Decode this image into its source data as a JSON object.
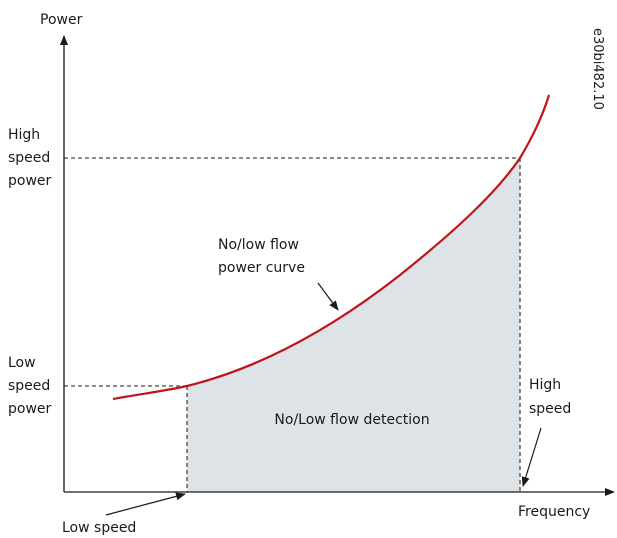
{
  "diagram": {
    "y_axis_label": "Power",
    "x_axis_label": "Frequency",
    "high_speed_power": [
      "High",
      "speed",
      "power"
    ],
    "low_speed_power": [
      "Low",
      "speed",
      "power"
    ],
    "curve_label": [
      "No/low flow",
      "power curve"
    ],
    "area_label": "No/Low flow detection",
    "high_speed": [
      "High",
      "speed"
    ],
    "low_speed": "Low speed",
    "figure_id": "e30bi482.10"
  }
}
